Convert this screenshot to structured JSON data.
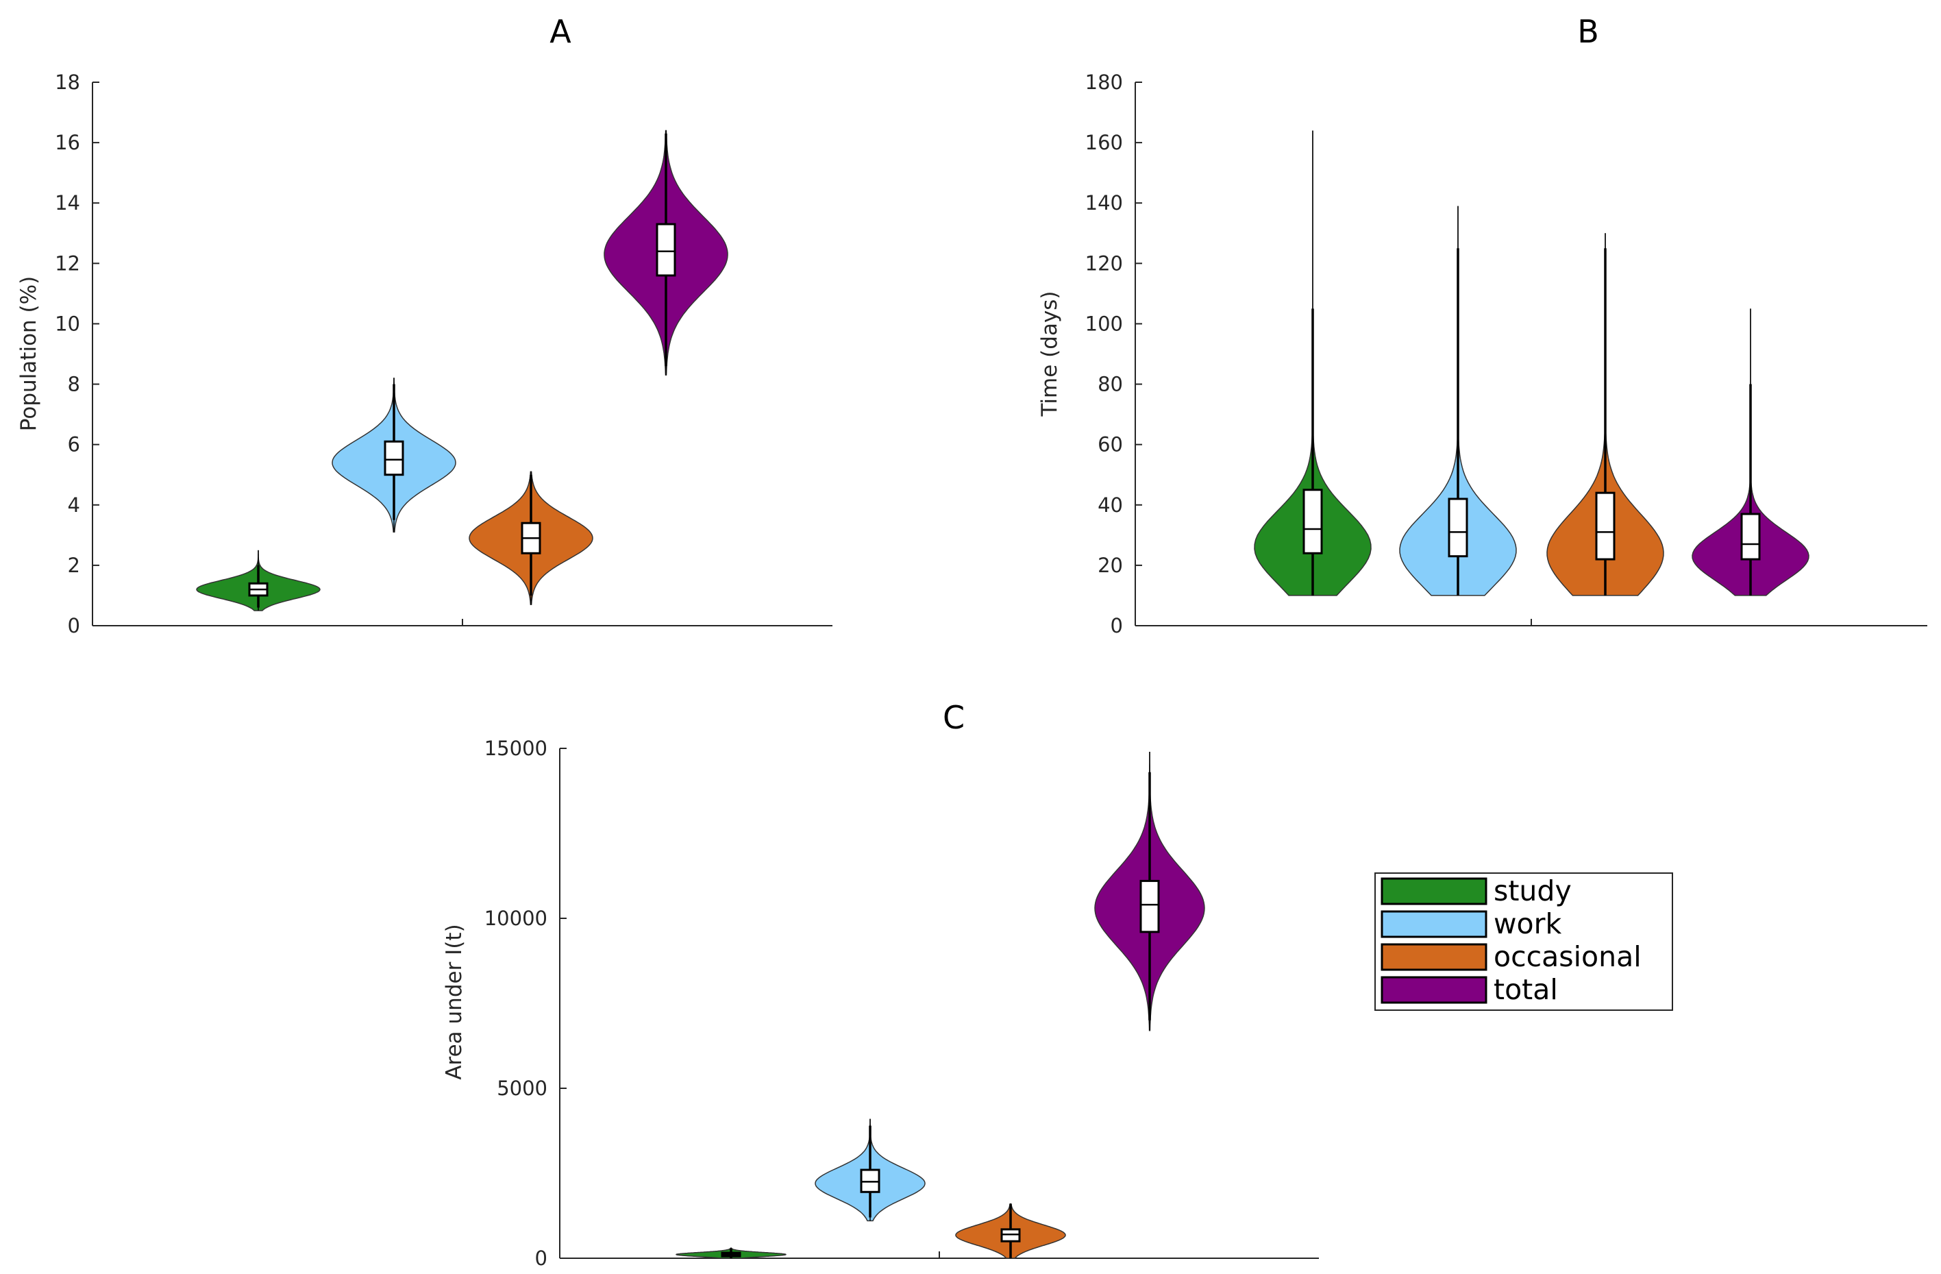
{
  "figure": {
    "legend": {
      "entries": [
        {
          "label": "study",
          "color": "#228b22"
        },
        {
          "label": "work",
          "color": "#87cefa"
        },
        {
          "label": "occasional",
          "color": "#d2691e"
        },
        {
          "label": "total",
          "color": "#800080"
        }
      ]
    }
  },
  "chart_data": [
    {
      "type": "violin",
      "title": "A",
      "xlabel": "",
      "ylabel": "Population (%)",
      "ylim": [
        0,
        18
      ],
      "yticks": [
        0,
        2,
        4,
        6,
        8,
        10,
        12,
        14,
        16,
        18
      ],
      "categories": [
        "study",
        "work",
        "occasional",
        "total"
      ],
      "colors": [
        "#228b22",
        "#87cefa",
        "#d2691e",
        "#800080"
      ],
      "violins": [
        {
          "min": 0.5,
          "max": 2.5,
          "q1": 1.0,
          "median": 1.2,
          "q3": 1.4,
          "whisker_low": 0.6,
          "whisker_high": 2.0,
          "mode": 1.2,
          "spread": 0.3
        },
        {
          "min": 3.1,
          "max": 8.2,
          "q1": 5.0,
          "median": 5.5,
          "q3": 6.1,
          "whisker_low": 3.5,
          "whisker_high": 8.0,
          "mode": 5.4,
          "spread": 0.75
        },
        {
          "min": 0.7,
          "max": 5.1,
          "q1": 2.4,
          "median": 2.9,
          "q3": 3.4,
          "whisker_low": 1.0,
          "whisker_high": 5.0,
          "mode": 2.9,
          "spread": 0.7
        },
        {
          "min": 8.3,
          "max": 16.4,
          "q1": 11.6,
          "median": 12.4,
          "q3": 13.3,
          "whisker_low": 8.6,
          "whisker_high": 16.3,
          "mode": 12.3,
          "spread": 1.25
        }
      ]
    },
    {
      "type": "violin",
      "title": "B",
      "xlabel": "",
      "ylabel": "Time (days)",
      "ylim": [
        0,
        180
      ],
      "yticks": [
        0,
        20,
        40,
        60,
        80,
        100,
        120,
        140,
        160,
        180
      ],
      "categories": [
        "study",
        "work",
        "occasional",
        "total"
      ],
      "colors": [
        "#228b22",
        "#87cefa",
        "#d2691e",
        "#800080"
      ],
      "violins": [
        {
          "min": 10,
          "max": 164,
          "q1": 24,
          "median": 32,
          "q3": 45,
          "whisker_low": 10,
          "whisker_high": 105,
          "mode": 26,
          "spread": 12
        },
        {
          "min": 10,
          "max": 139,
          "q1": 23,
          "median": 31,
          "q3": 42,
          "whisker_low": 10,
          "whisker_high": 125,
          "mode": 25,
          "spread": 12
        },
        {
          "min": 10,
          "max": 130,
          "q1": 22,
          "median": 31,
          "q3": 44,
          "whisker_low": 10,
          "whisker_high": 125,
          "mode": 24,
          "spread": 13
        },
        {
          "min": 10,
          "max": 105,
          "q1": 22,
          "median": 27,
          "q3": 37,
          "whisker_low": 10,
          "whisker_high": 80,
          "mode": 23,
          "spread": 8
        }
      ]
    },
    {
      "type": "violin",
      "title": "C",
      "xlabel": "",
      "ylabel": "Area under I(t)",
      "ylim": [
        0,
        15000
      ],
      "yticks": [
        0,
        5000,
        10000,
        15000
      ],
      "categories": [
        "study",
        "work",
        "occasional",
        "total"
      ],
      "colors": [
        "#228b22",
        "#87cefa",
        "#d2691e",
        "#800080"
      ],
      "violins": [
        {
          "min": 0,
          "max": 300,
          "q1": 60,
          "median": 110,
          "q3": 160,
          "whisker_low": 0,
          "whisker_high": 280,
          "mode": 110,
          "spread": 60
        },
        {
          "min": 1100,
          "max": 4100,
          "q1": 1950,
          "median": 2250,
          "q3": 2600,
          "whisker_low": 1200,
          "whisker_high": 3900,
          "mode": 2200,
          "spread": 450
        },
        {
          "min": 0,
          "max": 1600,
          "q1": 500,
          "median": 700,
          "q3": 850,
          "whisker_low": 0,
          "whisker_high": 1600,
          "mode": 680,
          "spread": 300
        },
        {
          "min": 6700,
          "max": 14900,
          "q1": 9600,
          "median": 10400,
          "q3": 11100,
          "whisker_low": 7000,
          "whisker_high": 14300,
          "mode": 10300,
          "spread": 1100
        }
      ]
    }
  ]
}
